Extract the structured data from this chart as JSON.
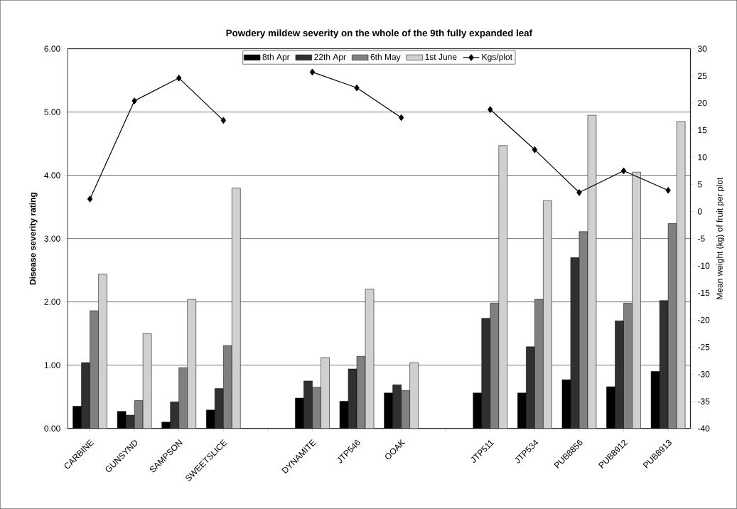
{
  "chart_data": {
    "type": "bar",
    "title": "Powdery mildew severity on the whole of the 9th fully expanded leaf",
    "ylabel": "Disease severity rating",
    "y2label": "Mean weight (kg) of fruit per plot",
    "categories": [
      "CARBINE",
      "GUNSYND",
      "SAMPSON",
      "SWEETSLICE",
      null,
      "DYNAMITE",
      "JTP546",
      "OOAK",
      null,
      "JTP511",
      "JTP534",
      "PUB8856",
      "PUB8912",
      "PUB8913"
    ],
    "series": [
      {
        "name": "8th Apr",
        "color": "#000000",
        "values": [
          0.35,
          0.27,
          0.1,
          0.29,
          null,
          0.48,
          0.43,
          0.56,
          null,
          0.56,
          0.56,
          0.77,
          0.66,
          0.9
        ]
      },
      {
        "name": "22th Apr",
        "color": "#303030",
        "values": [
          1.04,
          0.21,
          0.42,
          0.63,
          null,
          0.75,
          0.94,
          0.69,
          null,
          1.74,
          1.29,
          2.7,
          1.7,
          2.02
        ]
      },
      {
        "name": "6th May",
        "color": "#808080",
        "values": [
          1.86,
          0.44,
          0.96,
          1.31,
          null,
          0.65,
          1.14,
          0.6,
          null,
          1.98,
          2.04,
          3.11,
          1.98,
          3.24
        ]
      },
      {
        "name": "1st June",
        "color": "#d0d0d0",
        "values": [
          2.44,
          1.5,
          2.04,
          3.8,
          null,
          1.12,
          2.2,
          1.04,
          null,
          4.47,
          3.6,
          4.95,
          4.05,
          4.85
        ]
      },
      {
        "name": "Kgs/plot",
        "type": "line",
        "axis": "y2",
        "color": "#000000",
        "marker": "diamond",
        "values": [
          2.3,
          20.4,
          24.6,
          16.8,
          null,
          25.7,
          22.8,
          17.3,
          null,
          18.8,
          11.4,
          3.5,
          7.5,
          3.9
        ]
      }
    ],
    "ylim": [
      0,
      6
    ],
    "yticks": [
      {
        "value": 0,
        "label": "0.00"
      },
      {
        "value": 1,
        "label": "1.00"
      },
      {
        "value": 2,
        "label": "2.00"
      },
      {
        "value": 3,
        "label": "3.00"
      },
      {
        "value": 4,
        "label": "4.00"
      },
      {
        "value": 5,
        "label": "5.00"
      },
      {
        "value": 6,
        "label": "6.00"
      }
    ],
    "y2lim": [
      -40,
      30
    ],
    "y2ticks": [
      -40,
      -35,
      -30,
      -25,
      -20,
      -15,
      -10,
      -5,
      0,
      5,
      10,
      15,
      20,
      25,
      30
    ],
    "grid": "y",
    "legend": "top"
  }
}
